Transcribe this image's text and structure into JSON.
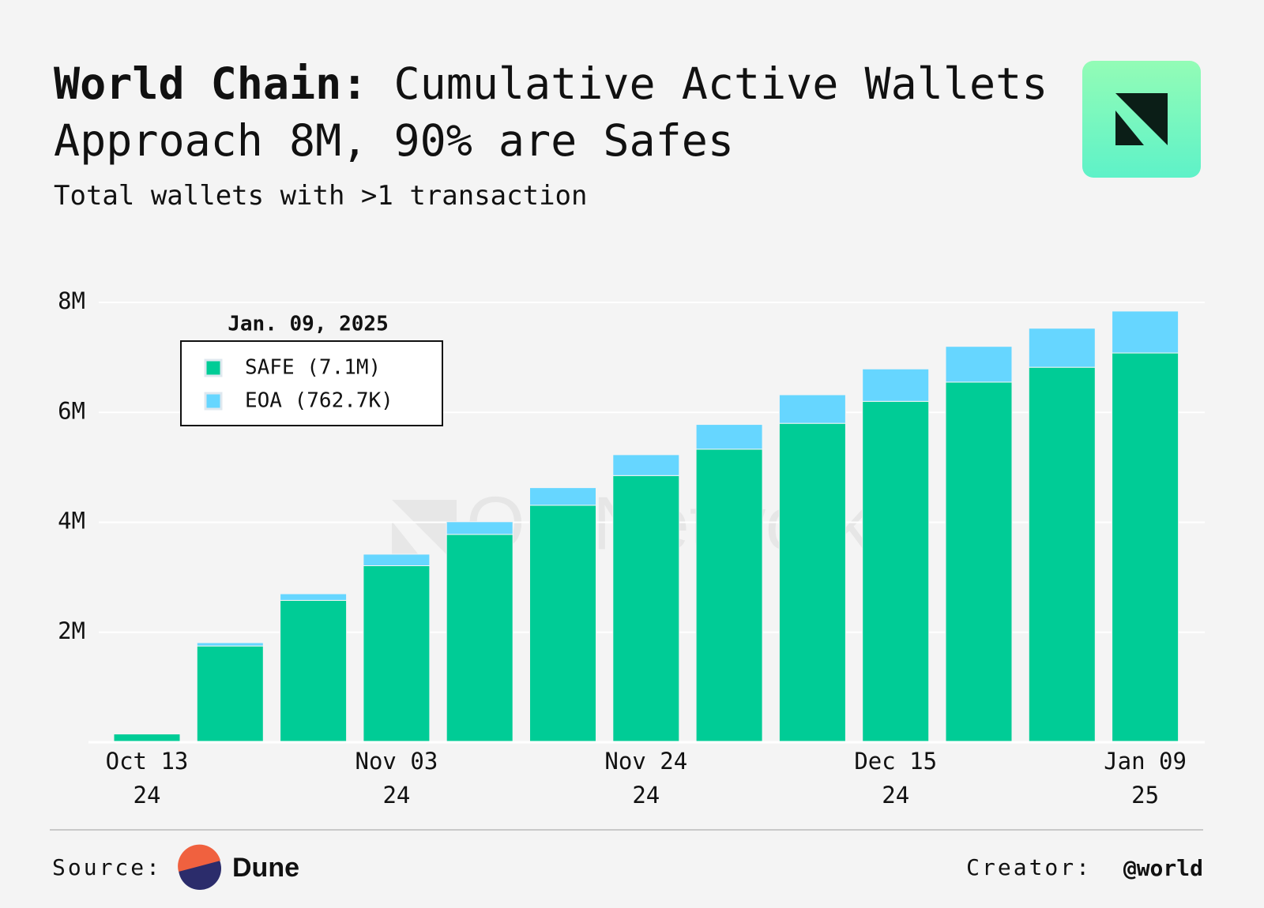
{
  "header": {
    "title_bold": "World Chain:",
    "title": "Cumulative Active Wallets Approach 8M, 90% are Safes",
    "subtitle": "Total wallets with >1 transaction"
  },
  "chart_data": {
    "type": "bar",
    "stacked": true,
    "categories": [
      [
        "Oct 13",
        "24"
      ],
      null,
      null,
      [
        "Nov 03",
        "24"
      ],
      null,
      null,
      [
        "Nov 24",
        "24"
      ],
      null,
      null,
      [
        "Dec 15",
        "24"
      ],
      null,
      null,
      [
        "Jan 09",
        "25"
      ]
    ],
    "series": [
      {
        "name": "SAFE",
        "color": "#00cc96",
        "values": [
          150000,
          1750000,
          2580000,
          3210000,
          3780000,
          4310000,
          4850000,
          5330000,
          5800000,
          6200000,
          6550000,
          6820000,
          7080000
        ]
      },
      {
        "name": "EOA",
        "color": "#66d6ff",
        "values": [
          10000,
          60000,
          120000,
          210000,
          230000,
          320000,
          380000,
          450000,
          520000,
          590000,
          650000,
          710000,
          762700
        ]
      }
    ],
    "ylim": [
      0,
      8000000
    ],
    "yticks": [
      {
        "value": 2000000,
        "label": "2M"
      },
      {
        "value": 4000000,
        "label": "4M"
      },
      {
        "value": 6000000,
        "label": "6M"
      },
      {
        "value": 8000000,
        "label": "8M"
      }
    ],
    "grid": true,
    "tooltip": {
      "date": "Jan. 09, 2025",
      "entries": [
        "SAFE (7.1M)",
        "EOA (762.7K)"
      ]
    },
    "watermark": "OurNetwork"
  },
  "footer": {
    "source_label": "Source:",
    "source": "Dune",
    "creator_label": "Creator:",
    "creator": "@world"
  }
}
